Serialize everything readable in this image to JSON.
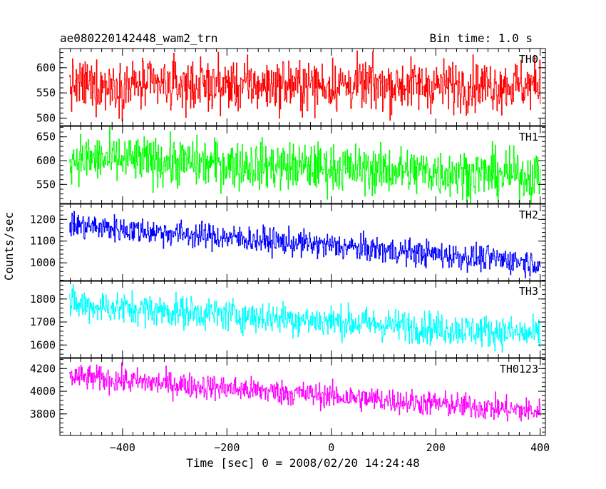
{
  "chart_data": {
    "type": "line",
    "title": "ae080220142448_wam2_trn",
    "bin_time_label": "Bin time: 1.0 s",
    "xlabel": "Time [sec] 0 = 2008/02/20 14:24:48",
    "ylabel": "Counts/sec",
    "xlim": [
      -520,
      410
    ],
    "xticks": [
      -400,
      -200,
      0,
      200,
      400
    ],
    "x_range": [
      -502,
      400
    ],
    "grid": false,
    "series": [
      {
        "name": "TH0",
        "color": "#ff0000",
        "ylim": [
          485,
          638
        ],
        "yticks": [
          500,
          550,
          600
        ],
        "trend_start": 565,
        "trend_end": 565,
        "noise_amplitude": 50
      },
      {
        "name": "TH1",
        "color": "#00ff00",
        "ylim": [
          510,
          672
        ],
        "yticks": [
          550,
          600,
          650
        ],
        "trend_start": 605,
        "trend_end": 568,
        "noise_amplitude": 50
      },
      {
        "name": "TH2",
        "color": "#0000ff",
        "ylim": [
          915,
          1270
        ],
        "yticks": [
          1000,
          1100,
          1200
        ],
        "trend_start": 1175,
        "trend_end": 1000,
        "noise_amplitude": 60
      },
      {
        "name": "TH3",
        "color": "#00ffff",
        "ylim": [
          1545,
          1880
        ],
        "yticks": [
          1600,
          1700,
          1800
        ],
        "trend_start": 1775,
        "trend_end": 1645,
        "noise_amplitude": 70
      },
      {
        "name": "TH0123",
        "color": "#ff00ff",
        "ylim": [
          3610,
          4290
        ],
        "yticks": [
          3800,
          4000,
          4200
        ],
        "trend_start": 4130,
        "trend_end": 3820,
        "noise_amplitude": 110
      }
    ]
  }
}
